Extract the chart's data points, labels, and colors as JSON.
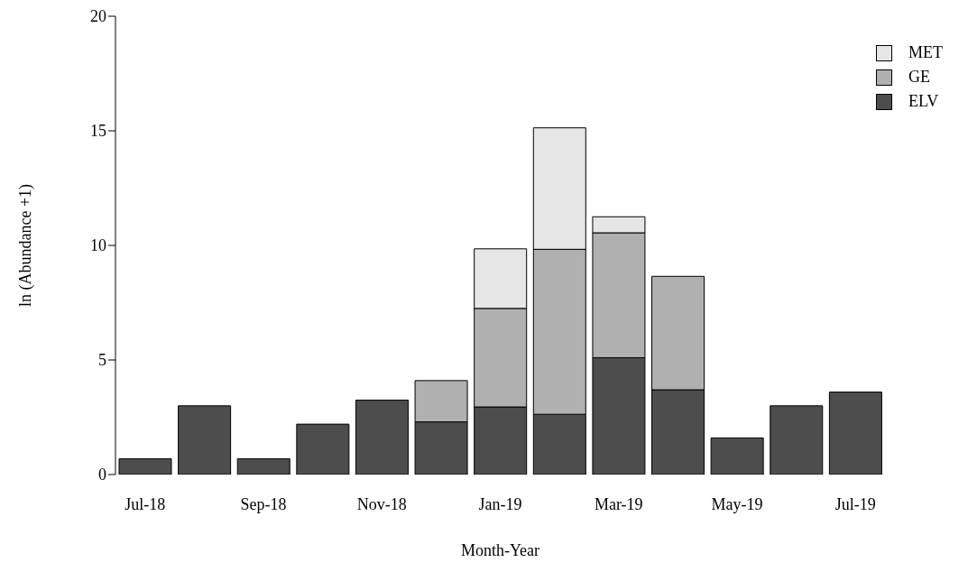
{
  "chart_data": {
    "type": "bar",
    "stacked": true,
    "xlabel": "Month-Year",
    "ylabel": "ln (Abundance +1)",
    "categories": [
      "Jul-18",
      null,
      "Sep-18",
      null,
      "Nov-18",
      null,
      "Jan-19",
      null,
      "Mar-19",
      null,
      "May-19",
      null,
      "Jul-19"
    ],
    "series": [
      {
        "name": "ELV",
        "color": "#4d4d4d",
        "values": [
          0.69,
          3.0,
          0.69,
          2.2,
          3.25,
          2.3,
          2.95,
          2.63,
          5.1,
          3.7,
          1.6,
          3.0,
          3.6
        ]
      },
      {
        "name": "GE",
        "color": "#b0b0b0",
        "values": [
          null,
          null,
          null,
          null,
          null,
          1.8,
          4.3,
          7.2,
          5.45,
          4.95,
          null,
          null,
          null
        ]
      },
      {
        "name": "MET",
        "color": "#e6e6e6",
        "values": [
          null,
          null,
          null,
          null,
          null,
          null,
          2.6,
          5.3,
          0.7,
          null,
          null,
          null,
          null
        ]
      }
    ],
    "ylim": [
      0,
      20
    ],
    "yticks": [
      0,
      5,
      10,
      15,
      20
    ],
    "grid": false,
    "legend": "top right"
  }
}
